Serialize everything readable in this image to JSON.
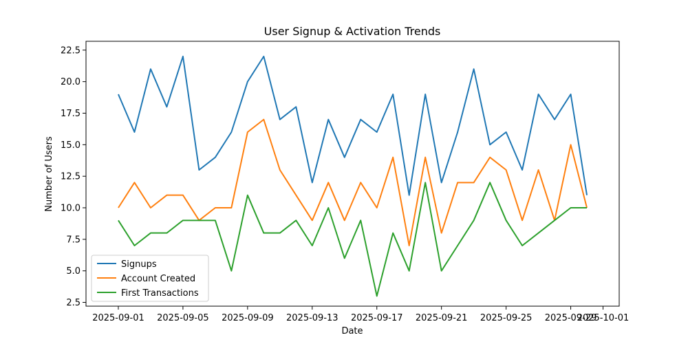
{
  "chart_data": {
    "type": "line",
    "title": "User Signup & Activation Trends",
    "xlabel": "Date",
    "ylabel": "Number of Users",
    "x": [
      "2025-09-01",
      "2025-09-02",
      "2025-09-03",
      "2025-09-04",
      "2025-09-05",
      "2025-09-06",
      "2025-09-07",
      "2025-09-08",
      "2025-09-09",
      "2025-09-10",
      "2025-09-11",
      "2025-09-12",
      "2025-09-13",
      "2025-09-14",
      "2025-09-15",
      "2025-09-16",
      "2025-09-17",
      "2025-09-18",
      "2025-09-19",
      "2025-09-20",
      "2025-09-21",
      "2025-09-22",
      "2025-09-23",
      "2025-09-24",
      "2025-09-25",
      "2025-09-26",
      "2025-09-27",
      "2025-09-28",
      "2025-09-29",
      "2025-09-30"
    ],
    "series": [
      {
        "name": "Signups",
        "color": "#1f77b4",
        "values": [
          19,
          16,
          21,
          18,
          22,
          13,
          14,
          16,
          20,
          22,
          17,
          18,
          12,
          17,
          14,
          17,
          16,
          19,
          11,
          19,
          12,
          16,
          21,
          15,
          16,
          13,
          19,
          17,
          19,
          11
        ]
      },
      {
        "name": "Account Created",
        "color": "#ff7f0e",
        "values": [
          10,
          12,
          10,
          11,
          11,
          9,
          10,
          10,
          16,
          17,
          13,
          11,
          9,
          12,
          9,
          12,
          10,
          14,
          7,
          14,
          8,
          12,
          12,
          14,
          13,
          9,
          13,
          9,
          15,
          10
        ]
      },
      {
        "name": "First Transactions",
        "color": "#2ca02c",
        "values": [
          9,
          7,
          8,
          8,
          9,
          9,
          9,
          5,
          11,
          8,
          8,
          9,
          7,
          10,
          6,
          9,
          3,
          8,
          5,
          12,
          5,
          7,
          9,
          12,
          9,
          7,
          8,
          9,
          10,
          10
        ]
      }
    ],
    "xlim": [
      "2025-08-30",
      "2025-10-02"
    ],
    "ylim": [
      2.2,
      23.2
    ],
    "x_ticks": [
      "2025-09-01",
      "2025-09-05",
      "2025-09-09",
      "2025-09-13",
      "2025-09-17",
      "2025-09-21",
      "2025-09-25",
      "2025-09-29",
      "2025-10-01"
    ],
    "y_ticks": [
      2.5,
      5.0,
      7.5,
      10.0,
      12.5,
      15.0,
      17.5,
      20.0,
      22.5
    ],
    "y_tick_labels": [
      "2.5",
      "5.0",
      "7.5",
      "10.0",
      "12.5",
      "15.0",
      "17.5",
      "20.0",
      "22.5"
    ],
    "grid": false,
    "legend_position": "lower-left"
  }
}
